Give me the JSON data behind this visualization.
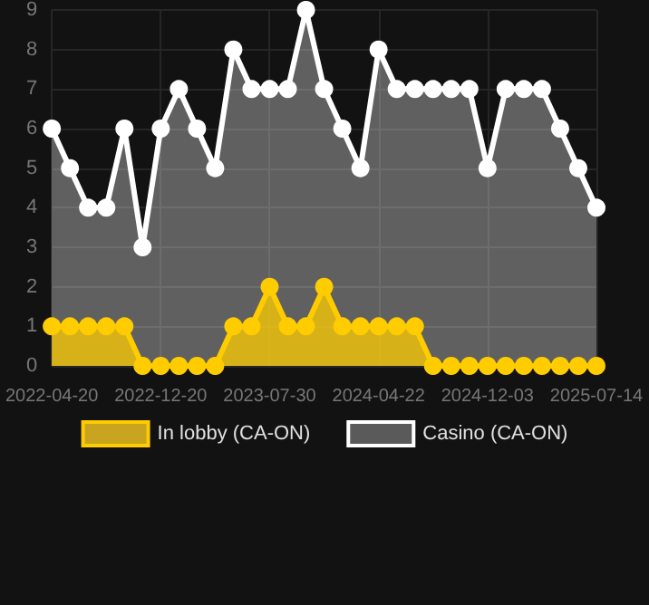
{
  "chart_data": {
    "type": "area",
    "categories": [
      "2022-04-20",
      null,
      null,
      null,
      null,
      null,
      "2022-12-20",
      null,
      null,
      null,
      null,
      null,
      "2023-07-30",
      null,
      null,
      null,
      null,
      null,
      "2024-04-22",
      null,
      null,
      null,
      null,
      null,
      "2024-12-03",
      null,
      null,
      null,
      null,
      null,
      "2025-07-14"
    ],
    "series": [
      {
        "name": "In lobby (CA-ON)",
        "color": "#ffcc00",
        "values": [
          1,
          1,
          1,
          1,
          1,
          0,
          0,
          0,
          0,
          0,
          1,
          1,
          2,
          1,
          1,
          2,
          1,
          1,
          1,
          1,
          1,
          0,
          0,
          0,
          0,
          0,
          0,
          0,
          0,
          0,
          0
        ]
      },
      {
        "name": "Casino (CA-ON)",
        "color": "#ffffff",
        "values": [
          6,
          5,
          4,
          4,
          6,
          3,
          6,
          7,
          6,
          5,
          8,
          7,
          7,
          7,
          9,
          7,
          6,
          5,
          8,
          7,
          7,
          7,
          7,
          7,
          5,
          7,
          7,
          7,
          6,
          5,
          4
        ]
      }
    ],
    "ylim": [
      0,
      9
    ],
    "yticks": [
      0,
      1,
      2,
      3,
      4,
      5,
      6,
      7,
      8,
      9
    ],
    "grid": true,
    "legend": "bottom",
    "marker": "circle",
    "line_style": "solid"
  }
}
